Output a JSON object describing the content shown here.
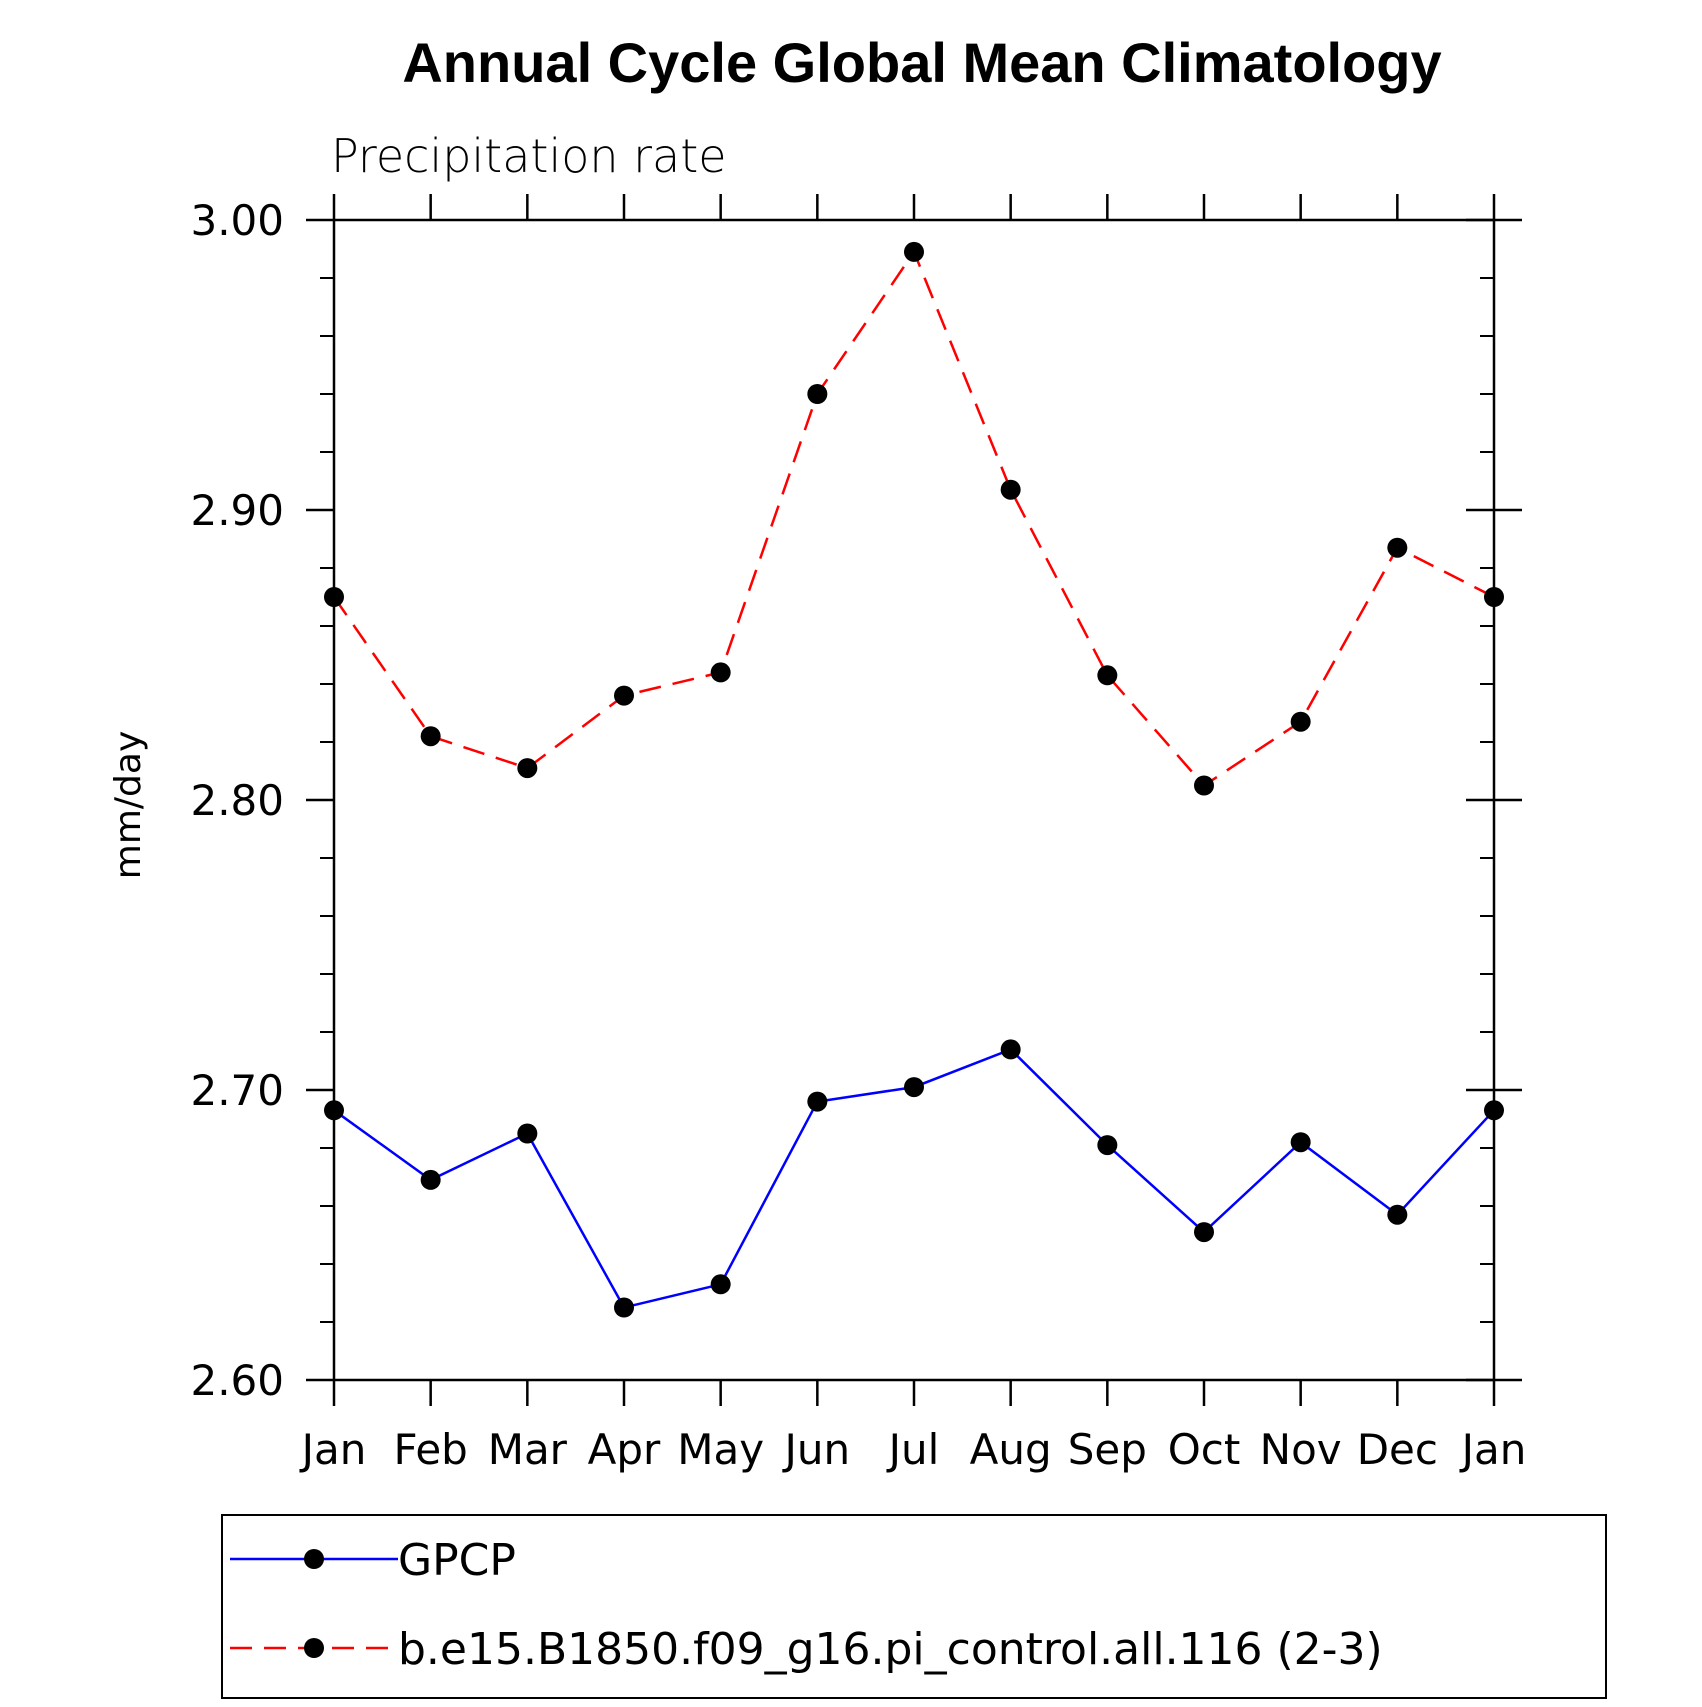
{
  "chart_data": {
    "type": "line",
    "title": "Annual Cycle Global Mean Climatology",
    "subtitle": "Precipitation rate",
    "xlabel": "",
    "ylabel": "mm/day",
    "categories": [
      "Jan",
      "Feb",
      "Mar",
      "Apr",
      "May",
      "Jun",
      "Jul",
      "Aug",
      "Sep",
      "Oct",
      "Nov",
      "Dec",
      "Jan"
    ],
    "ylim": [
      2.6,
      3.0
    ],
    "yticks": [
      "2.60",
      "2.70",
      "2.80",
      "2.90",
      "3.00"
    ],
    "grid": false,
    "legend_position": "bottom",
    "series": [
      {
        "name": "GPCP",
        "color": "#0000ff",
        "dash": "solid",
        "marker": "filled-circle",
        "values": [
          2.693,
          2.669,
          2.685,
          2.625,
          2.633,
          2.696,
          2.701,
          2.714,
          2.681,
          2.651,
          2.682,
          2.657,
          2.693
        ]
      },
      {
        "name": "b.e15.B1850.f09_g16.pi_control.all.116 (2-3)",
        "color": "#ff0000",
        "dash": "dashed",
        "marker": "filled-circle",
        "values": [
          2.87,
          2.822,
          2.811,
          2.836,
          2.844,
          2.94,
          2.989,
          2.907,
          2.843,
          2.805,
          2.827,
          2.887,
          2.87
        ]
      }
    ]
  }
}
